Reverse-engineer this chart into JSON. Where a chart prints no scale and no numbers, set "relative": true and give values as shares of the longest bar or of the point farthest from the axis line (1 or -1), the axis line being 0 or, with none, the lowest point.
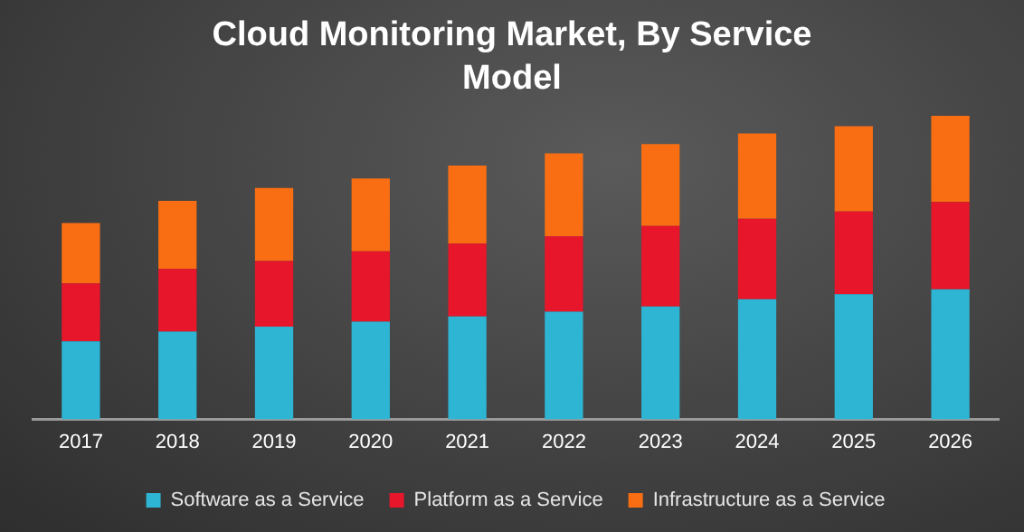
{
  "chart_data": {
    "type": "bar",
    "title": "Cloud Monitoring Market, By Service Model",
    "categories": [
      "2017",
      "2018",
      "2019",
      "2020",
      "2021",
      "2022",
      "2023",
      "2024",
      "2025",
      "2026"
    ],
    "stacked": true,
    "relative": true,
    "legend": "bottom",
    "series": [
      {
        "name": "Software as a Service",
        "color": "#2eb5d4",
        "values": [
          0.257,
          0.289,
          0.306,
          0.322,
          0.339,
          0.355,
          0.372,
          0.396,
          0.412,
          0.429
        ]
      },
      {
        "name": "Platform as a Service",
        "color": "#e8162a",
        "values": [
          0.191,
          0.207,
          0.216,
          0.232,
          0.24,
          0.248,
          0.265,
          0.265,
          0.273,
          0.287
        ]
      },
      {
        "name": "Infrastructure as a Service",
        "color": "#f96e12",
        "values": [
          0.199,
          0.224,
          0.24,
          0.24,
          0.257,
          0.273,
          0.27,
          0.281,
          0.281,
          0.284
        ]
      }
    ]
  }
}
